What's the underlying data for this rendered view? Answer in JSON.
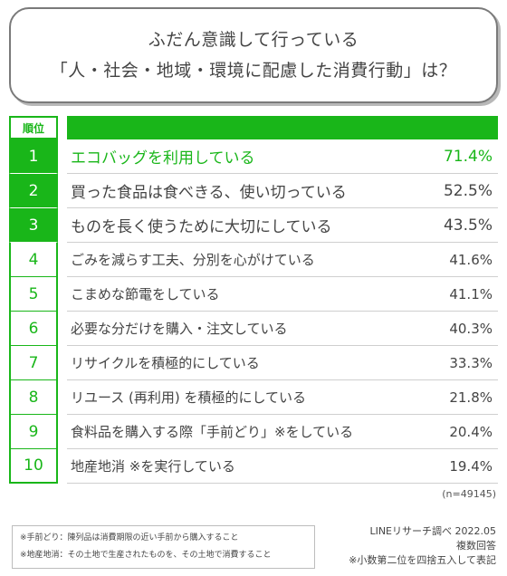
{
  "title": {
    "line1": "ふだん意識して行っている",
    "line2": "「人・社会・地域・環境に配慮した消費行動」は？"
  },
  "header": {
    "rank_label": "順位"
  },
  "rows": [
    {
      "rank": "1",
      "label": "エコバッグを利用している",
      "value": "71.4%"
    },
    {
      "rank": "2",
      "label": "買った食品は食べきる、使い切っている",
      "value": "52.5%"
    },
    {
      "rank": "3",
      "label": "ものを長く使うために大切にしている",
      "value": "43.5%"
    },
    {
      "rank": "4",
      "label": "ごみを減らす工夫、分別を心がけている",
      "value": "41.6%"
    },
    {
      "rank": "5",
      "label": "こまめな節電をしている",
      "value": "41.1%"
    },
    {
      "rank": "6",
      "label": "必要な分だけを購入・注文している",
      "value": "40.3%"
    },
    {
      "rank": "7",
      "label": "リサイクルを積極的にしている",
      "value": "33.3%"
    },
    {
      "rank": "8",
      "label": "リユース (再利用) を積極的にしている",
      "value": "21.8%"
    },
    {
      "rank": "9",
      "label": "食料品を購入する際「手前どり」※をしている",
      "value": "20.4%"
    },
    {
      "rank": "10",
      "label": "地産地消 ※を実行している",
      "value": "19.4%"
    }
  ],
  "sample_size": "(n=49145)",
  "notes": [
    "※手前どり：陳列品は消費期限の近い手前から購入すること",
    "※地産地消：その土地で生産されたものを、その土地で消費すること"
  ],
  "source": {
    "line1": "LINEリサーチ調べ 2022.05",
    "line2": "複数回答",
    "line3": "※小数第二位を四捨五入して表記"
  },
  "colors": {
    "accent": "#19b619",
    "text": "#444444",
    "divider": "#cfcfcf"
  }
}
